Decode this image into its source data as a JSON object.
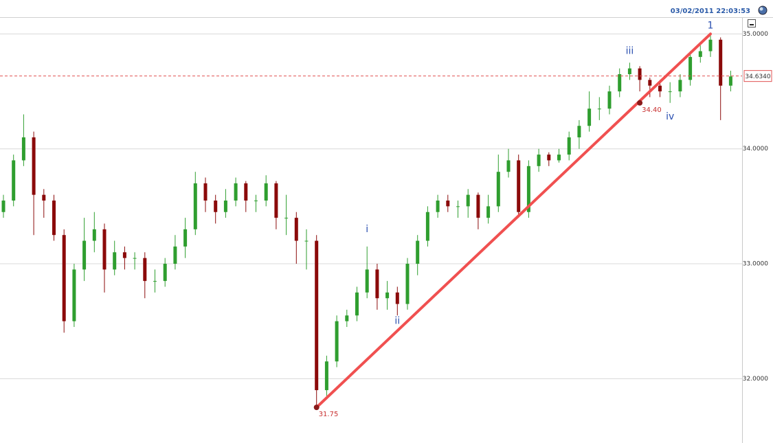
{
  "chart_data": {
    "type": "candlestick",
    "timestamp": "03/02/2011 22:03:53",
    "up_color": "#2f9e2f",
    "down_color": "#8b0a0a",
    "ylim": [
      31.44,
      35.14
    ],
    "yticks": [
      {
        "value": 32,
        "label": "32.0000"
      },
      {
        "value": 33,
        "label": "33.0000"
      },
      {
        "value": 34,
        "label": "34.0000"
      },
      {
        "value": 35,
        "label": "35.0000"
      }
    ],
    "grid": true,
    "last_price": {
      "value": 34.634,
      "label": "34.6340"
    },
    "open": [
      33.45,
      33.55,
      33.9,
      34.1,
      33.6,
      33.55,
      33.25,
      32.5,
      32.95,
      33.2,
      33.3,
      32.95,
      33.1,
      33.05,
      33.05,
      32.85,
      32.85,
      33.0,
      33.15,
      33.3,
      33.7,
      33.55,
      33.45,
      33.55,
      33.7,
      33.55,
      33.55,
      33.7,
      33.4,
      33.4,
      33.2,
      33.2,
      31.9,
      32.15,
      32.5,
      32.55,
      32.75,
      32.95,
      32.7,
      32.75,
      32.65,
      33.0,
      33.2,
      33.45,
      33.55,
      33.5,
      33.5,
      33.6,
      33.4,
      33.5,
      33.8,
      33.9,
      33.45,
      33.85,
      33.95,
      33.9,
      33.95,
      34.1,
      34.2,
      34.35,
      34.35,
      34.5,
      34.65,
      34.7,
      34.6,
      34.55,
      34.5,
      34.5,
      34.6,
      34.8,
      34.85,
      34.95,
      34.55
    ],
    "high": [
      33.6,
      33.95,
      34.3,
      34.15,
      33.65,
      33.6,
      33.3,
      33.0,
      33.4,
      33.45,
      33.35,
      33.2,
      33.15,
      33.1,
      33.1,
      32.95,
      33.05,
      33.25,
      33.4,
      33.8,
      33.75,
      33.6,
      33.65,
      33.75,
      33.72,
      33.6,
      33.77,
      33.72,
      33.6,
      33.45,
      33.3,
      33.25,
      32.2,
      32.55,
      32.6,
      32.8,
      33.15,
      33.0,
      32.85,
      32.8,
      33.05,
      33.25,
      33.5,
      33.6,
      33.6,
      33.55,
      33.65,
      33.62,
      33.6,
      33.95,
      34.0,
      33.95,
      33.9,
      34.0,
      33.97,
      34.0,
      34.15,
      34.25,
      34.5,
      34.45,
      34.55,
      34.7,
      34.75,
      34.72,
      34.62,
      34.6,
      34.58,
      34.65,
      34.85,
      34.9,
      35.0,
      34.97,
      34.68
    ],
    "low": [
      33.4,
      33.5,
      33.85,
      33.25,
      33.4,
      33.2,
      32.4,
      32.45,
      32.85,
      33.1,
      32.75,
      32.9,
      32.95,
      32.95,
      32.7,
      32.75,
      32.8,
      32.95,
      33.05,
      33.25,
      33.45,
      33.35,
      33.4,
      33.5,
      33.45,
      33.45,
      33.5,
      33.3,
      33.25,
      33.0,
      32.95,
      31.75,
      31.85,
      32.1,
      32.45,
      32.5,
      32.7,
      32.6,
      32.6,
      32.55,
      32.6,
      32.9,
      33.15,
      33.4,
      33.45,
      33.4,
      33.4,
      33.3,
      33.35,
      33.45,
      33.75,
      33.4,
      33.4,
      33.8,
      33.85,
      33.88,
      33.9,
      34.0,
      34.15,
      34.25,
      34.3,
      34.45,
      34.6,
      34.5,
      34.45,
      34.45,
      34.4,
      34.45,
      34.55,
      34.75,
      34.8,
      34.25,
      34.5
    ],
    "close": [
      33.55,
      33.9,
      34.1,
      33.6,
      33.55,
      33.25,
      32.5,
      32.95,
      33.2,
      33.3,
      32.95,
      33.1,
      33.05,
      33.05,
      32.85,
      32.85,
      33.0,
      33.15,
      33.3,
      33.7,
      33.55,
      33.45,
      33.55,
      33.7,
      33.55,
      33.55,
      33.7,
      33.4,
      33.4,
      33.2,
      33.2,
      31.9,
      32.15,
      32.5,
      32.55,
      32.75,
      32.95,
      32.7,
      32.75,
      32.65,
      33.0,
      33.2,
      33.45,
      33.55,
      33.5,
      33.5,
      33.6,
      33.4,
      33.5,
      33.8,
      33.9,
      33.45,
      33.85,
      33.95,
      33.9,
      33.95,
      34.1,
      34.2,
      34.35,
      34.35,
      34.5,
      34.65,
      34.7,
      34.6,
      34.55,
      34.5,
      34.5,
      34.6,
      34.8,
      34.85,
      34.95,
      34.55,
      34.63
    ],
    "trend_line": {
      "color": "#f05050",
      "x": [
        31,
        70
      ],
      "values": [
        31.75,
        35.0
      ]
    },
    "points": [
      {
        "x": 31,
        "value": 31.75,
        "label": "31.75"
      },
      {
        "x": 63,
        "value": 34.4,
        "label": "34.40"
      }
    ],
    "wave_labels": [
      {
        "x": 36,
        "value": 33.3,
        "label": "i"
      },
      {
        "x": 39,
        "value": 32.5,
        "label": "ii"
      },
      {
        "x": 62,
        "value": 34.85,
        "label": "iii"
      },
      {
        "x": 66,
        "value": 34.28,
        "label": "iv"
      },
      {
        "x": 70,
        "value": 35.07,
        "label": "1"
      }
    ]
  }
}
